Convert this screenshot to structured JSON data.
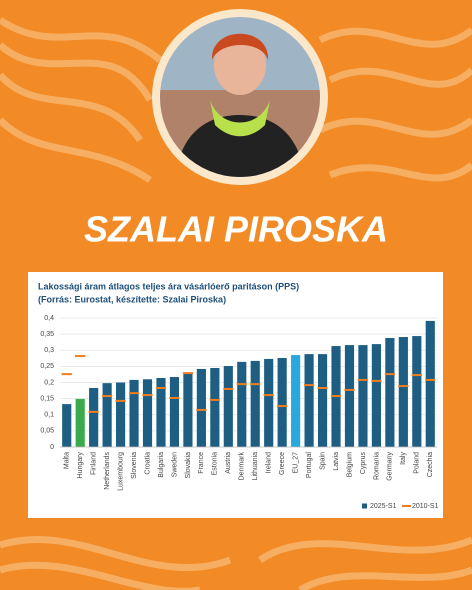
{
  "name": "SZALAI PIROSKA",
  "chart_data": {
    "type": "bar",
    "title": "Lakossági áram átlagos teljes ára vásárlóerő paritáson (PPS)",
    "subtitle": "(Forrás: Eurostat, készítette: Szalai Piroska)",
    "categories": [
      "Malta",
      "Hungary",
      "Finland",
      "Netherlands",
      "Luxembourg",
      "Slovenia",
      "Croatia",
      "Bulgaria",
      "Sweden",
      "Slovakia",
      "France",
      "Estonia",
      "Austria",
      "Denmark",
      "Lithuania",
      "Ireland",
      "Greece",
      "EU_27",
      "Portugal",
      "Spain",
      "Latvia",
      "Belgium",
      "Cyprus",
      "Romania",
      "Germany",
      "Italy",
      "Poland",
      "Czechia"
    ],
    "series": [
      {
        "name": "2025-S1",
        "color": "#1d5e82",
        "mark": "bar",
        "colors": [
          "#1d5e82",
          "#3aaa4a",
          "#1d5e82",
          "#1d5e82",
          "#1d5e82",
          "#1d5e82",
          "#1d5e82",
          "#1d5e82",
          "#1d5e82",
          "#1d5e82",
          "#1d5e82",
          "#1d5e82",
          "#1d5e82",
          "#1d5e82",
          "#1d5e82",
          "#1d5e82",
          "#1d5e82",
          "#29a8e0",
          "#1d5e82",
          "#1d5e82",
          "#1d5e82",
          "#1d5e82",
          "#1d5e82",
          "#1d5e82",
          "#1d5e82",
          "#1d5e82",
          "#1d5e82",
          "#1d5e82"
        ],
        "values": [
          0.133,
          0.149,
          0.183,
          0.198,
          0.2,
          0.208,
          0.21,
          0.214,
          0.217,
          0.229,
          0.242,
          0.245,
          0.251,
          0.264,
          0.267,
          0.273,
          0.276,
          0.285,
          0.288,
          0.288,
          0.313,
          0.316,
          0.316,
          0.319,
          0.338,
          0.341,
          0.344,
          0.391
        ]
      },
      {
        "name": "2010-S1",
        "color": "#f07d1e",
        "mark": "dash",
        "values": [
          0.226,
          0.282,
          0.109,
          0.158,
          0.143,
          0.167,
          0.161,
          0.183,
          0.152,
          0.229,
          0.115,
          0.146,
          0.18,
          0.195,
          0.195,
          0.161,
          0.127,
          null,
          0.192,
          0.183,
          0.158,
          0.177,
          0.208,
          0.205,
          0.226,
          0.189,
          0.223,
          0.208
        ]
      }
    ],
    "ylim": [
      0,
      0.4
    ],
    "yticks": [
      {
        "value": 0,
        "label": "0"
      },
      {
        "value": 0.05,
        "label": "0,05"
      },
      {
        "value": 0.1,
        "label": "0,1"
      },
      {
        "value": 0.15,
        "label": "0,15"
      },
      {
        "value": 0.2,
        "label": "0,2"
      },
      {
        "value": 0.25,
        "label": "0,25"
      },
      {
        "value": 0.3,
        "label": "0,3"
      },
      {
        "value": 0.35,
        "label": "0,35"
      },
      {
        "value": 0.4,
        "label": "0,4"
      }
    ],
    "grid": true,
    "legend": "bottom-right"
  }
}
